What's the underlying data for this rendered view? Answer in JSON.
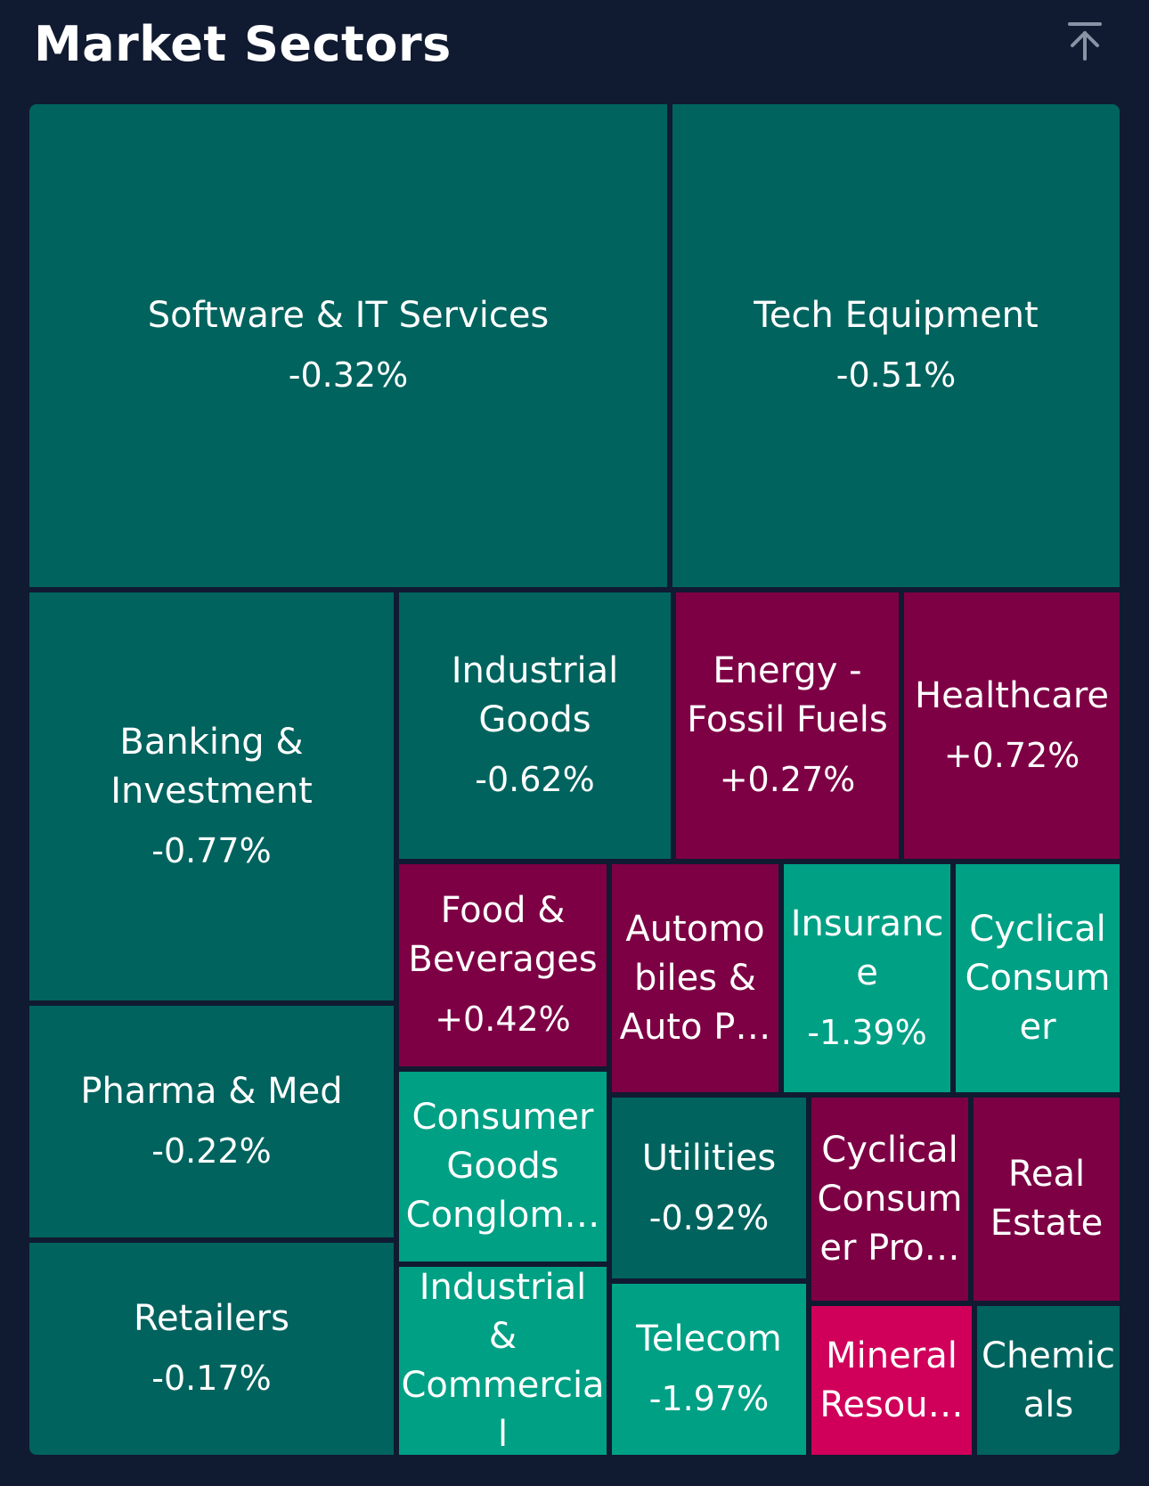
{
  "header": {
    "title": "Market Sectors",
    "collapse_icon": "arrow-up-to-line-icon"
  },
  "colors": {
    "background": "#101a30",
    "dark_teal": "#00635e",
    "bright_teal": "#00a085",
    "maroon": "#7d0044",
    "pink": "#d0005a"
  },
  "chart_data": {
    "type": "treemap",
    "tiles": [
      {
        "lines": [
          "Software & IT Services"
        ],
        "change": "-0.32%",
        "color": "#00635e"
      },
      {
        "lines": [
          "Tech Equipment"
        ],
        "change": "-0.51%",
        "color": "#00635e"
      },
      {
        "lines": [
          "Banking &",
          "Investment"
        ],
        "change": "-0.77%",
        "color": "#00635e"
      },
      {
        "lines": [
          "Industrial",
          "Goods"
        ],
        "change": "-0.62%",
        "color": "#00635e"
      },
      {
        "lines": [
          "Energy -",
          "Fossil Fuels"
        ],
        "change": "+0.27%",
        "color": "#7d0044"
      },
      {
        "lines": [
          "Healthcare"
        ],
        "change": "+0.72%",
        "color": "#7d0044"
      },
      {
        "lines": [
          "Pharma & Med"
        ],
        "change": "-0.22%",
        "color": "#00635e"
      },
      {
        "lines": [
          "Retailers"
        ],
        "change": "-0.17%",
        "color": "#00635e"
      },
      {
        "lines": [
          "Food &",
          "Beverages"
        ],
        "change": "+0.42%",
        "color": "#7d0044"
      },
      {
        "lines": [
          "Automo",
          "biles &",
          "Auto P…"
        ],
        "change": "",
        "color": "#7d0044"
      },
      {
        "lines": [
          "Insuranc",
          "e"
        ],
        "change": "-1.39%",
        "color": "#00a085"
      },
      {
        "lines": [
          "Cyclical",
          "Consum",
          "er"
        ],
        "change": "",
        "color": "#00a085"
      },
      {
        "lines": [
          "Consumer",
          "Goods",
          "Conglom…"
        ],
        "change": "",
        "color": "#00a085"
      },
      {
        "lines": [
          "Utilities"
        ],
        "change": "-0.92%",
        "color": "#00635e"
      },
      {
        "lines": [
          "Cyclical",
          "Consum",
          "er Pro…"
        ],
        "change": "",
        "color": "#7d0044"
      },
      {
        "lines": [
          "Real",
          "Estate"
        ],
        "change": "",
        "color": "#7d0044"
      },
      {
        "lines": [
          "Industrial &",
          "Commercia",
          "l"
        ],
        "change": "",
        "color": "#00a085"
      },
      {
        "lines": [
          "Telecom"
        ],
        "change": "-1.97%",
        "color": "#00a085"
      },
      {
        "lines": [
          "Mineral",
          "Resou…"
        ],
        "change": "",
        "color": "#d0005a"
      },
      {
        "lines": [
          "Chemic",
          "als"
        ],
        "change": "",
        "color": "#00635e"
      }
    ]
  }
}
